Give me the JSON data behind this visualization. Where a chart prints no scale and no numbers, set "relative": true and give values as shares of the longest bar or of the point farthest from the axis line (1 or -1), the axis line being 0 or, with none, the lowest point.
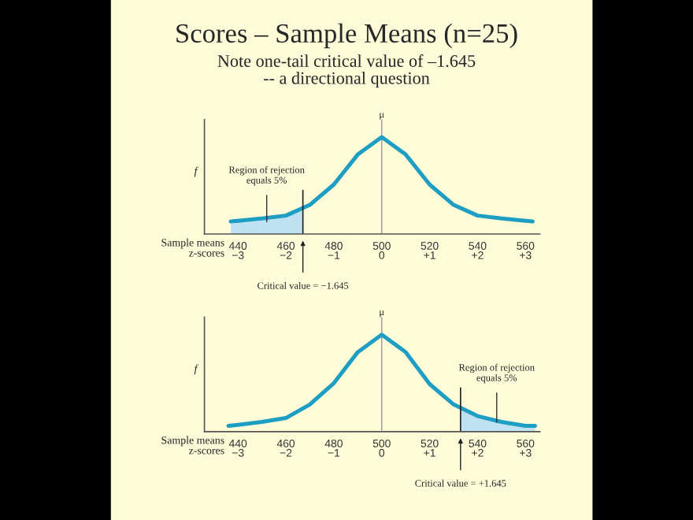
{
  "chart_data": [
    {
      "type": "line",
      "title": "Scores – Sample Means (n=25)",
      "subtitle": "Note one-tail critical value of –1.645\n-- a directional question",
      "relative": true,
      "ylabel": "f",
      "xlabel": "Sample means",
      "x2label": "z-scores",
      "x": [
        437,
        440,
        450,
        460,
        470,
        480,
        490,
        500,
        510,
        520,
        530,
        540,
        550,
        560,
        563
      ],
      "series": [
        {
          "type": "area",
          "color": "#bfe1f2",
          "x": [
            437,
            440,
            450,
            460,
            467
          ],
          "values": [
            0.13,
            0.136,
            0.16,
            0.19,
            0.27
          ]
        },
        {
          "color": "#1f9ec4",
          "values": [
            0.13,
            0.136,
            0.16,
            0.19,
            0.3,
            0.51,
            0.82,
            1,
            0.82,
            0.51,
            0.3,
            0.19,
            0.16,
            0.136,
            0.13
          ]
        }
      ],
      "xlim": [
        426,
        566
      ],
      "xticks": [
        440,
        460,
        480,
        500,
        520,
        540,
        560
      ],
      "x2lim": [
        -3.7,
        3.3
      ],
      "x2ticks": [
        {
          "value": -3,
          "label": "−3"
        },
        {
          "value": -2,
          "label": "−2"
        },
        {
          "value": -1,
          "label": "−1"
        },
        0,
        {
          "value": 1,
          "label": "+1"
        },
        {
          "value": 2,
          "label": "+2"
        },
        {
          "value": 3,
          "label": "+3"
        }
      ],
      "annotations": [
        {
          "text": "μ",
          "x": 500,
          "y": 1.18
        },
        {
          "text": "Region of rejection\nequals 5%",
          "x": 452,
          "y": 0.08
        }
      ],
      "ref_lines": [
        {
          "axis": "x",
          "value": 500,
          "color": "#999999"
        },
        {
          "axis": "x2",
          "value": -1.645,
          "label": "Critical value = −1.645",
          "color": "#222222"
        }
      ],
      "grid": false,
      "legend": false
    },
    {
      "type": "line",
      "relative": true,
      "ylabel": "f",
      "xlabel": "Sample means",
      "x2label": "z-scores",
      "x": [
        436,
        440,
        450,
        460,
        470,
        480,
        490,
        500,
        510,
        520,
        530,
        540,
        550,
        560,
        564
      ],
      "series": [
        {
          "type": "area",
          "color": "#bfe1f2",
          "x": [
            533,
            540,
            550,
            560,
            564
          ],
          "values": [
            0.24,
            0.16,
            0.1,
            0.06,
            0.06
          ]
        },
        {
          "color": "#1f9ec4",
          "values": [
            0.06,
            0.07,
            0.1,
            0.14,
            0.28,
            0.5,
            0.82,
            1,
            0.82,
            0.49,
            0.28,
            0.16,
            0.1,
            0.06,
            0.06
          ]
        }
      ],
      "xlim": [
        426,
        566
      ],
      "xticks": [
        440,
        460,
        480,
        500,
        520,
        540,
        560
      ],
      "x2lim": [
        -3.7,
        3.3
      ],
      "x2ticks": [
        {
          "value": -3,
          "label": "−3"
        },
        {
          "value": -2,
          "label": "−2"
        },
        {
          "value": -1,
          "label": "−1"
        },
        0,
        {
          "value": 1,
          "label": "+1"
        },
        {
          "value": 2,
          "label": "+2"
        },
        {
          "value": 3,
          "label": "+3"
        }
      ],
      "annotations": [
        {
          "text": "μ",
          "x": 500,
          "y": 1.18
        },
        {
          "text": "Region of rejection\nequals 5%",
          "x": 548,
          "y": 0.05
        }
      ],
      "ref_lines": [
        {
          "axis": "x",
          "value": 500,
          "color": "#999999"
        },
        {
          "axis": "x2",
          "value": 1.645,
          "label": "Critical value = +1.645",
          "color": "#222222"
        }
      ],
      "grid": false,
      "legend": false
    }
  ]
}
